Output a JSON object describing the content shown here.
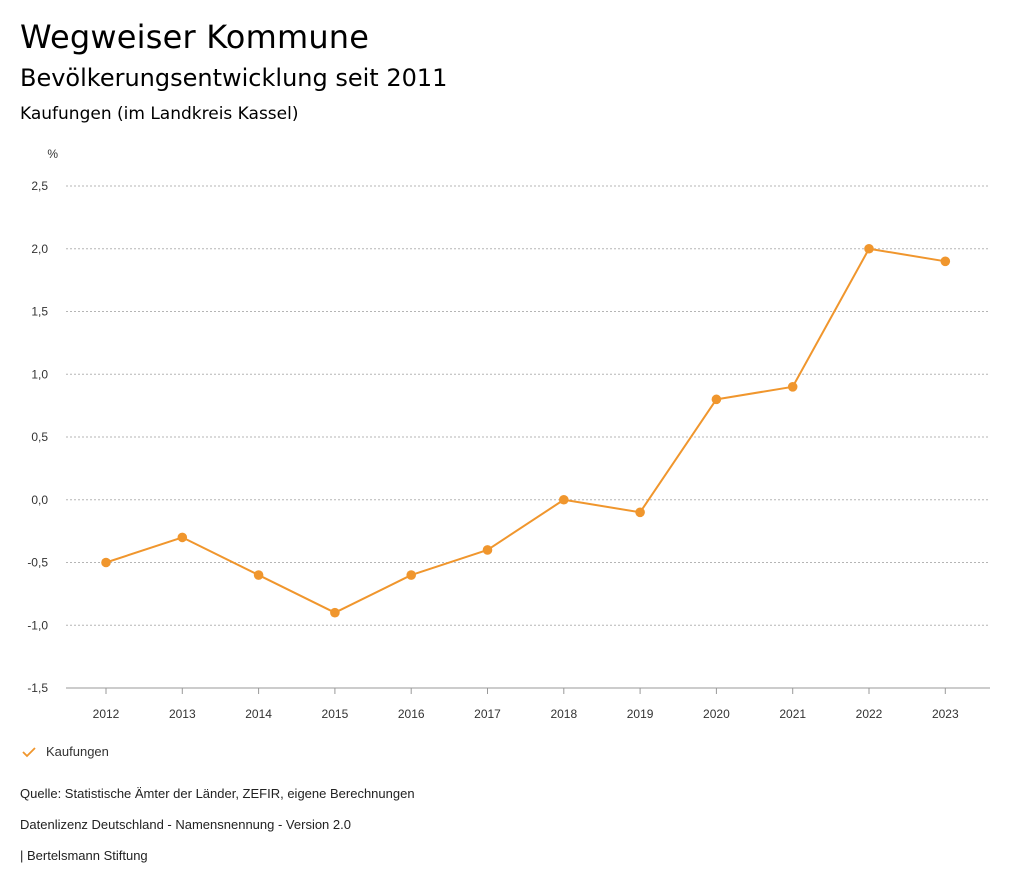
{
  "header": {
    "title": "Wegweiser Kommune",
    "subtitle": "Bevölkerungsentwicklung seit 2011",
    "region": "Kaufungen (im Landkreis Kassel)"
  },
  "chart_data": {
    "type": "line",
    "title": "Bevölkerungsentwicklung seit 2011",
    "ylabel": "%",
    "xlabel": "",
    "categories": [
      "2012",
      "2013",
      "2014",
      "2015",
      "2016",
      "2017",
      "2018",
      "2019",
      "2020",
      "2021",
      "2022",
      "2023"
    ],
    "series": [
      {
        "name": "Kaufungen",
        "color": "#f0962d",
        "values": [
          -0.5,
          -0.3,
          -0.6,
          -0.9,
          -0.6,
          -0.4,
          0.0,
          -0.1,
          0.8,
          0.9,
          2.0,
          1.9
        ]
      }
    ],
    "ylim": [
      -1.5,
      2.5
    ],
    "yticks": [
      2.5,
      2.0,
      1.5,
      1.0,
      0.5,
      0.0,
      -0.5,
      -1.0,
      -1.5
    ],
    "ytick_labels": [
      "2,5",
      "2,0",
      "1,5",
      "1,0",
      "0,5",
      "0,0",
      "-0,5",
      "-1,0",
      "-1,5"
    ],
    "grid": true,
    "legend_position": "bottom-left"
  },
  "legend": {
    "label": "Kaufungen",
    "icon": "checkmark-icon",
    "color": "#f0962d"
  },
  "footer": {
    "source": "Quelle: Statistische Ämter der Länder, ZEFIR, eigene Berechnungen",
    "license": "Datenlizenz Deutschland - Namensnennung - Version 2.0",
    "publisher": "| Bertelsmann Stiftung"
  }
}
